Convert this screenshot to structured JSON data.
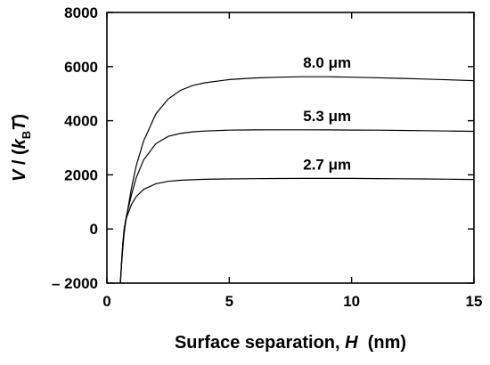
{
  "chart_data": {
    "type": "line",
    "title": "",
    "xlabel": "Surface separation, H (nm)",
    "xlabel_parts": {
      "prefix": "Surface separation, ",
      "var": "H",
      "suffix": "  (nm)"
    },
    "ylabel": "V / (kBT)",
    "ylabel_parts": {
      "v": "V",
      "slash": " / (",
      "k": "k",
      "sub": "B",
      "t": "T",
      "close": ")"
    },
    "xlim": [
      0,
      15
    ],
    "ylim": [
      -2000,
      8000
    ],
    "x_ticks": [
      0,
      5,
      10,
      15
    ],
    "x_tick_labels": [
      "0",
      "5",
      "10",
      "15"
    ],
    "y_ticks": [
      -2000,
      0,
      2000,
      4000,
      6000,
      8000
    ],
    "y_tick_labels": [
      "– 2000",
      "0",
      "2000",
      "4000",
      "6000",
      "8000"
    ],
    "grid": false,
    "series": [
      {
        "name": "8.0 μm",
        "x": [
          0.55,
          0.6,
          0.65,
          0.7,
          0.75,
          0.8,
          1.0,
          1.2,
          1.5,
          2.0,
          2.5,
          3.0,
          3.5,
          4.0,
          5.0,
          6.0,
          7.0,
          8.0,
          9.0,
          10.0,
          11.0,
          12.0,
          13.0,
          14.0,
          15.0
        ],
        "y": [
          -2000,
          -1300,
          -700,
          -200,
          150,
          450,
          1500,
          2350,
          3250,
          4250,
          4800,
          5120,
          5300,
          5400,
          5520,
          5580,
          5610,
          5625,
          5625,
          5610,
          5590,
          5565,
          5540,
          5510,
          5480
        ]
      },
      {
        "name": "5.3 μm",
        "x": [
          0.55,
          0.6,
          0.65,
          0.7,
          0.75,
          0.8,
          1.0,
          1.2,
          1.5,
          2.0,
          2.5,
          3.0,
          3.5,
          4.0,
          5.0,
          6.0,
          7.0,
          8.0,
          9.0,
          10.0,
          11.0,
          12.0,
          13.0,
          14.0,
          15.0
        ],
        "y": [
          -2000,
          -1200,
          -550,
          -50,
          250,
          500,
          1250,
          1900,
          2550,
          3150,
          3420,
          3530,
          3590,
          3620,
          3650,
          3660,
          3665,
          3665,
          3660,
          3655,
          3650,
          3640,
          3630,
          3620,
          3610
        ]
      },
      {
        "name": "2.7 μm",
        "x": [
          0.55,
          0.6,
          0.65,
          0.7,
          0.75,
          0.8,
          1.0,
          1.2,
          1.5,
          2.0,
          2.5,
          3.0,
          3.5,
          4.0,
          5.0,
          6.0,
          7.0,
          8.0,
          9.0,
          10.0,
          11.0,
          12.0,
          13.0,
          14.0,
          15.0
        ],
        "y": [
          -2000,
          -1200,
          -500,
          -50,
          220,
          420,
          900,
          1200,
          1460,
          1670,
          1760,
          1800,
          1820,
          1835,
          1850,
          1860,
          1865,
          1870,
          1870,
          1868,
          1862,
          1855,
          1848,
          1840,
          1830
        ]
      }
    ]
  }
}
